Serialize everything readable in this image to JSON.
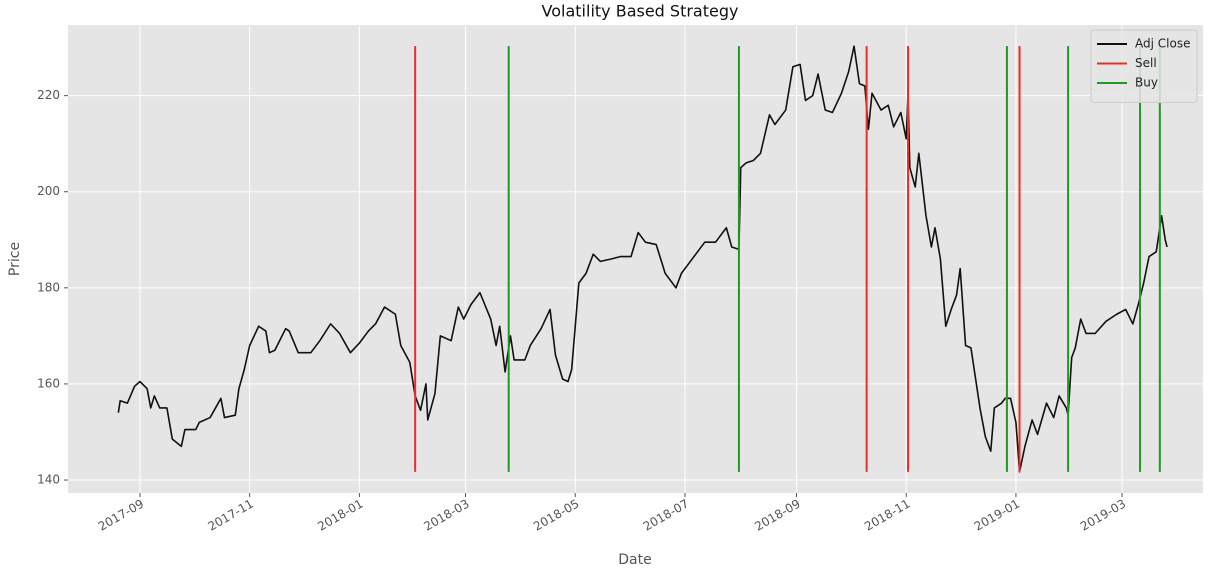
{
  "chart_data": {
    "type": "line",
    "title": "Volatility Based Strategy",
    "xlabel": "Date",
    "ylabel": "Price",
    "x": [
      "2017-08-20",
      "2017-08-21",
      "2017-08-25",
      "2017-08-29",
      "2017-09-01",
      "2017-09-05",
      "2017-09-07",
      "2017-09-09",
      "2017-09-12",
      "2017-09-16",
      "2017-09-19",
      "2017-09-24",
      "2017-09-26",
      "2017-10-02",
      "2017-10-04",
      "2017-10-10",
      "2017-10-16",
      "2017-10-18",
      "2017-10-24",
      "2017-10-26",
      "2017-10-29",
      "2017-11-01",
      "2017-11-06",
      "2017-11-10",
      "2017-11-12",
      "2017-11-15",
      "2017-11-21",
      "2017-11-23",
      "2017-11-28",
      "2017-12-05",
      "2017-12-10",
      "2017-12-16",
      "2017-12-21",
      "2017-12-27",
      "2018-01-01",
      "2018-01-06",
      "2018-01-10",
      "2018-01-15",
      "2018-01-21",
      "2018-01-24",
      "2018-01-29",
      "2018-02-01",
      "2018-02-04",
      "2018-02-07",
      "2018-02-08",
      "2018-02-12",
      "2018-02-15",
      "2018-02-21",
      "2018-02-25",
      "2018-02-28",
      "2018-03-04",
      "2018-03-09",
      "2018-03-15",
      "2018-03-18",
      "2018-03-20",
      "2018-03-23",
      "2018-03-26",
      "2018-03-28",
      "2018-04-03",
      "2018-04-06",
      "2018-04-12",
      "2018-04-17",
      "2018-04-20",
      "2018-04-24",
      "2018-04-27",
      "2018-04-29",
      "2018-05-03",
      "2018-05-07",
      "2018-05-11",
      "2018-05-15",
      "2018-05-21",
      "2018-05-26",
      "2018-06-01",
      "2018-06-05",
      "2018-06-09",
      "2018-06-15",
      "2018-06-20",
      "2018-06-26",
      "2018-06-29",
      "2018-07-03",
      "2018-07-07",
      "2018-07-12",
      "2018-07-18",
      "2018-07-24",
      "2018-07-27",
      "2018-07-31",
      "2018-08-01",
      "2018-08-04",
      "2018-08-08",
      "2018-08-12",
      "2018-08-17",
      "2018-08-20",
      "2018-08-26",
      "2018-08-30",
      "2018-09-03",
      "2018-09-06",
      "2018-09-10",
      "2018-09-13",
      "2018-09-17",
      "2018-09-21",
      "2018-09-26",
      "2018-09-30",
      "2018-10-03",
      "2018-10-06",
      "2018-10-09",
      "2018-10-11",
      "2018-10-13",
      "2018-10-18",
      "2018-10-22",
      "2018-10-25",
      "2018-10-29",
      "2018-11-01",
      "2018-11-02",
      "2018-11-03",
      "2018-11-06",
      "2018-11-08",
      "2018-11-12",
      "2018-11-15",
      "2018-11-17",
      "2018-11-20",
      "2018-11-23",
      "2018-11-26",
      "2018-11-29",
      "2018-12-01",
      "2018-12-04",
      "2018-12-07",
      "2018-12-10",
      "2018-12-12",
      "2018-12-15",
      "2018-12-18",
      "2018-12-20",
      "2018-12-24",
      "2018-12-26",
      "2018-12-29",
      "2019-01-01",
      "2019-01-03",
      "2019-01-06",
      "2019-01-10",
      "2019-01-13",
      "2019-01-18",
      "2019-01-22",
      "2019-01-25",
      "2019-01-29",
      "2019-01-30",
      "2019-02-01",
      "2019-02-03",
      "2019-02-06",
      "2019-02-09",
      "2019-02-14",
      "2019-02-20",
      "2019-02-26",
      "2019-03-03",
      "2019-03-07",
      "2019-03-10",
      "2019-03-13",
      "2019-03-16",
      "2019-03-20",
      "2019-03-23",
      "2019-03-25",
      "2019-03-26"
    ],
    "series": [
      {
        "name": "Adj Close",
        "color": "#111111",
        "values": [
          154,
          156.5,
          156,
          159.5,
          160.5,
          159,
          155,
          157.5,
          155,
          155,
          148.5,
          147,
          150.5,
          150.5,
          152,
          153,
          157,
          153,
          153.5,
          159,
          163,
          168,
          172,
          171,
          166.5,
          167,
          171.5,
          171,
          166.5,
          166.5,
          169,
          172.5,
          170.5,
          166.5,
          168.5,
          171,
          172.5,
          176,
          174.5,
          168,
          164.5,
          157.5,
          154.5,
          160,
          152.5,
          158,
          170,
          169,
          176,
          173.5,
          176.5,
          179,
          173.5,
          168,
          172,
          162.5,
          170,
          165,
          165,
          168,
          171.5,
          175.5,
          166,
          161,
          160.5,
          163,
          181,
          183,
          187,
          185.5,
          186,
          186.5,
          186.5,
          191.5,
          189.5,
          189,
          183,
          180,
          183,
          185,
          187,
          189.5,
          189.5,
          192.5,
          188.5,
          188,
          205,
          206,
          206.5,
          208,
          216,
          214,
          217,
          226,
          226.5,
          219,
          220,
          224.5,
          217,
          216.5,
          220.5,
          225,
          230.3,
          222.5,
          222,
          213,
          220.5,
          217,
          218,
          213.5,
          216.5,
          211,
          220.5,
          205,
          201,
          208,
          195,
          188.5,
          192.5,
          186,
          172,
          175.5,
          178.5,
          184,
          168,
          167.5,
          160,
          155,
          149,
          146,
          155,
          156,
          157,
          157,
          152,
          141.7,
          147,
          152.5,
          149.5,
          156,
          153,
          157.5,
          155,
          153.5,
          165.5,
          167.5,
          173.5,
          170.5,
          170.5,
          173,
          174.5,
          175.5,
          172.5,
          176.5,
          181,
          186.5,
          187.5,
          195,
          190,
          188.5
        ]
      }
    ],
    "vlines": [
      {
        "name": "Sell",
        "color": "#e8302b",
        "x": [
          "2018-02-01",
          "2018-10-10",
          "2018-11-02",
          "2019-01-03"
        ],
        "ymin": 141.7,
        "ymax": 230.3
      },
      {
        "name": "Buy",
        "color": "#1f9a1f",
        "x": [
          "2018-03-25",
          "2018-07-31",
          "2018-12-27",
          "2019-01-30",
          "2019-03-11",
          "2019-03-22"
        ],
        "ymin": 141.7,
        "ymax": 230.3
      }
    ],
    "xlim": [
      "2017-07-23",
      "2019-04-15"
    ],
    "xticks": [
      "2017-09",
      "2017-11",
      "2018-01",
      "2018-03",
      "2018-05",
      "2018-07",
      "2018-09",
      "2018-11",
      "2019-01",
      "2019-03"
    ],
    "ylim": [
      137.3,
      234.7
    ],
    "yticks": [
      140,
      160,
      180,
      200,
      220
    ],
    "grid": true,
    "legend": "upper right"
  }
}
